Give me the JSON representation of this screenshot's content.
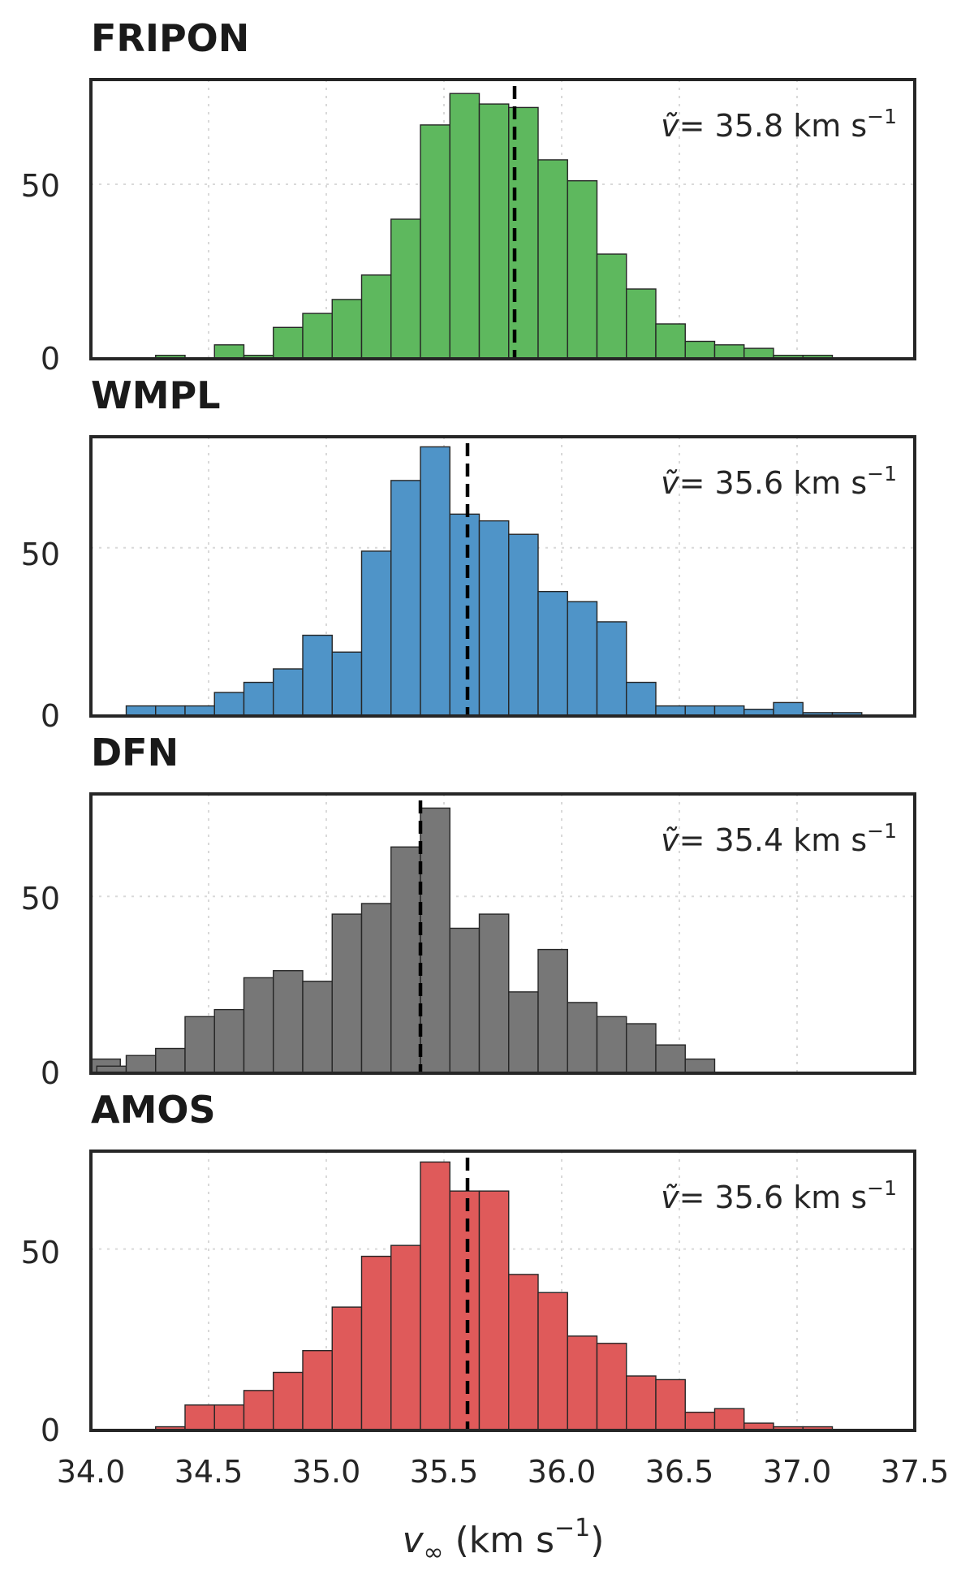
{
  "chart_data": {
    "type": "bar",
    "layout": "four stacked histograms sharing the x-axis",
    "bin_width": 0.125,
    "x_range": [
      34.0,
      37.5
    ],
    "x_ticks": [
      "34.0",
      "34.5",
      "35.0",
      "35.5",
      "36.0",
      "36.5",
      "37.0",
      "37.5"
    ],
    "y_ticks": [
      "0",
      "50"
    ],
    "xlabel": {
      "main": "v",
      "sub": "∞",
      "unit_open": " (km s",
      "unit_sup": "−1",
      "unit_close": ")"
    },
    "grid": "dotted",
    "panels": [
      {
        "title": "FRIPON",
        "color": "#5eb85e",
        "ylim": [
          0,
          80
        ],
        "bin_starts": [
          34.15,
          34.275,
          34.4,
          34.525,
          34.65,
          34.775,
          34.9,
          35.025,
          35.15,
          35.275,
          35.4,
          35.525,
          35.65,
          35.775,
          35.9,
          36.025,
          36.15,
          36.275,
          36.4,
          36.525,
          36.65,
          36.775,
          36.9,
          37.025,
          37.15,
          37.275
        ],
        "values": [
          0,
          1,
          0,
          4,
          1,
          9,
          13,
          17,
          24,
          40,
          67,
          76,
          73,
          72,
          57,
          51,
          30,
          20,
          10,
          5,
          4,
          3,
          1,
          1,
          0,
          0
        ],
        "median": 35.8,
        "annotation": {
          "symbol": "ṽ",
          "equals": "= ",
          "value": "35.8",
          "unit": " km s",
          "unit_sup": "−1"
        }
      },
      {
        "title": "WMPL",
        "color": "#4f94c8",
        "ylim": [
          0,
          83
        ],
        "bin_starts": [
          34.15,
          34.275,
          34.4,
          34.525,
          34.65,
          34.775,
          34.9,
          35.025,
          35.15,
          35.275,
          35.4,
          35.525,
          35.65,
          35.775,
          35.9,
          36.025,
          36.15,
          36.275,
          36.4,
          36.525,
          36.65,
          36.775,
          36.9,
          37.025,
          37.15,
          37.275
        ],
        "values": [
          3,
          3,
          3,
          7,
          10,
          14,
          24,
          19,
          49,
          70,
          80,
          60,
          58,
          54,
          37,
          34,
          28,
          10,
          3,
          3,
          3,
          2,
          4,
          1,
          1,
          0
        ],
        "median": 35.6,
        "annotation": {
          "symbol": "ṽ",
          "equals": "= ",
          "value": "35.6",
          "unit": " km s",
          "unit_sup": "−1"
        }
      },
      {
        "title": "DFN",
        "color": "#777777",
        "ylim": [
          0,
          79
        ],
        "bin_starts": [
          34.0,
          34.025,
          34.15,
          34.275,
          34.4,
          34.525,
          34.65,
          34.775,
          34.9,
          35.025,
          35.15,
          35.275,
          35.4,
          35.525,
          35.65,
          35.775,
          35.9,
          36.025,
          36.15,
          36.275,
          36.4,
          36.525,
          36.65
        ],
        "values": [
          4,
          2,
          5,
          7,
          16,
          18,
          27,
          29,
          26,
          45,
          48,
          64,
          75,
          41,
          45,
          23,
          35,
          20,
          16,
          14,
          8,
          4,
          0
        ],
        "median": 35.4,
        "annotation": {
          "symbol": "ṽ",
          "equals": "= ",
          "value": "35.4",
          "unit": " km s",
          "unit_sup": "−1"
        }
      },
      {
        "title": "AMOS",
        "color": "#df5a5a",
        "ylim": [
          0,
          77
        ],
        "bin_starts": [
          34.025,
          34.15,
          34.275,
          34.4,
          34.525,
          34.65,
          34.775,
          34.9,
          35.025,
          35.15,
          35.275,
          35.4,
          35.525,
          35.65,
          35.775,
          35.9,
          36.025,
          36.15,
          36.275,
          36.4,
          36.525,
          36.65,
          36.775,
          36.9,
          37.025,
          37.15,
          37.275
        ],
        "values": [
          0,
          0,
          1,
          7,
          7,
          11,
          16,
          22,
          34,
          48,
          51,
          74,
          66,
          66,
          43,
          38,
          26,
          24,
          15,
          14,
          5,
          6,
          2,
          1,
          1,
          0,
          0
        ],
        "median": 35.6,
        "annotation": {
          "symbol": "ṽ",
          "equals": "= ",
          "value": "35.6",
          "unit": " km s",
          "unit_sup": "−1"
        }
      }
    ]
  }
}
